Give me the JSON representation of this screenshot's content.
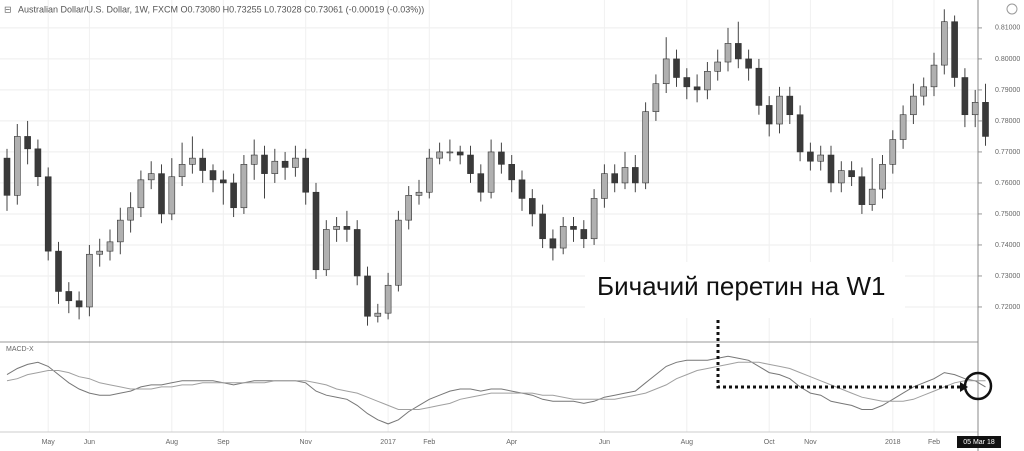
{
  "chart_data": [
    {
      "type": "candlestick",
      "title": "Australian Dollar/U.S. Dollar, 1W, FXCM O0.73080 H0.73255 L0.73028 C0.73061 (-0.00019 (-0.03%))",
      "annotation": "Бичачий перетин на W1",
      "crosshair_label": "05 Mar 18",
      "up_color": "#b0b0b0",
      "down_color": "#3a3a3a",
      "categories": [
        null,
        null,
        null,
        null,
        "May",
        null,
        null,
        null,
        "Jun",
        null,
        null,
        null,
        null,
        null,
        null,
        null,
        "Aug",
        null,
        null,
        null,
        null,
        "Sep",
        null,
        null,
        null,
        null,
        null,
        null,
        null,
        "Nov",
        null,
        null,
        null,
        null,
        null,
        null,
        null,
        "2017",
        null,
        null,
        null,
        "Feb",
        null,
        null,
        null,
        null,
        null,
        null,
        null,
        "Apr",
        null,
        null,
        null,
        null,
        null,
        null,
        null,
        null,
        "Jun",
        null,
        null,
        null,
        null,
        null,
        null,
        null,
        "Aug",
        null,
        null,
        null,
        null,
        null,
        null,
        null,
        "Oct",
        null,
        null,
        null,
        "Nov",
        null,
        null,
        null,
        null,
        null,
        null,
        null,
        "2018",
        null,
        null,
        null,
        "Feb",
        null,
        null,
        null,
        null,
        null
      ],
      "open": [
        0.768,
        0.756,
        0.775,
        0.771,
        0.762,
        0.738,
        0.725,
        0.722,
        0.72,
        0.737,
        0.738,
        0.741,
        0.748,
        0.752,
        0.761,
        0.763,
        0.75,
        0.762,
        0.766,
        0.768,
        0.764,
        0.761,
        0.76,
        0.752,
        0.766,
        0.769,
        0.763,
        0.767,
        0.765,
        0.768,
        0.757,
        0.732,
        0.745,
        0.746,
        0.745,
        0.73,
        0.717,
        0.718,
        0.727,
        0.748,
        0.756,
        0.757,
        0.768,
        0.77,
        0.77,
        0.769,
        0.763,
        0.757,
        0.77,
        0.766,
        0.761,
        0.755,
        0.75,
        0.742,
        0.739,
        0.746,
        0.745,
        0.742,
        0.755,
        0.763,
        0.76,
        0.765,
        0.76,
        0.783,
        0.792,
        0.8,
        0.794,
        0.791,
        0.79,
        0.796,
        0.799,
        0.805,
        0.8,
        0.797,
        0.785,
        0.779,
        0.788,
        0.782,
        0.77,
        0.767,
        0.769,
        0.76,
        0.764,
        0.762,
        0.753,
        0.758,
        0.766,
        0.774,
        0.782,
        0.788,
        0.791,
        0.798,
        0.812,
        0.794,
        0.782,
        0.786
      ],
      "high": [
        0.771,
        0.779,
        0.78,
        0.774,
        0.765,
        0.741,
        0.728,
        0.725,
        0.74,
        0.742,
        0.745,
        0.752,
        0.757,
        0.764,
        0.767,
        0.766,
        0.768,
        0.773,
        0.775,
        0.771,
        0.766,
        0.764,
        0.763,
        0.769,
        0.774,
        0.772,
        0.771,
        0.77,
        0.772,
        0.771,
        0.76,
        0.748,
        0.749,
        0.751,
        0.748,
        0.733,
        0.721,
        0.731,
        0.751,
        0.759,
        0.761,
        0.771,
        0.773,
        0.774,
        0.772,
        0.772,
        0.766,
        0.774,
        0.773,
        0.769,
        0.764,
        0.758,
        0.753,
        0.745,
        0.749,
        0.749,
        0.748,
        0.758,
        0.766,
        0.766,
        0.77,
        0.769,
        0.786,
        0.795,
        0.807,
        0.803,
        0.797,
        0.795,
        0.799,
        0.803,
        0.81,
        0.812,
        0.803,
        0.8,
        0.788,
        0.791,
        0.791,
        0.785,
        0.773,
        0.772,
        0.772,
        0.767,
        0.767,
        0.765,
        0.768,
        0.769,
        0.777,
        0.785,
        0.792,
        0.794,
        0.802,
        0.816,
        0.814,
        0.797,
        0.79,
        0.792
      ],
      "low": [
        0.751,
        0.753,
        0.766,
        0.759,
        0.735,
        0.721,
        0.718,
        0.716,
        0.717,
        0.733,
        0.735,
        0.737,
        0.744,
        0.749,
        0.758,
        0.747,
        0.748,
        0.759,
        0.763,
        0.76,
        0.757,
        0.753,
        0.749,
        0.75,
        0.761,
        0.755,
        0.76,
        0.761,
        0.762,
        0.753,
        0.729,
        0.73,
        0.741,
        0.741,
        0.727,
        0.714,
        0.715,
        0.716,
        0.725,
        0.745,
        0.753,
        0.755,
        0.766,
        0.767,
        0.766,
        0.76,
        0.754,
        0.755,
        0.763,
        0.757,
        0.751,
        0.746,
        0.739,
        0.735,
        0.737,
        0.741,
        0.739,
        0.74,
        0.752,
        0.757,
        0.758,
        0.757,
        0.758,
        0.78,
        0.789,
        0.791,
        0.787,
        0.786,
        0.787,
        0.793,
        0.796,
        0.797,
        0.793,
        0.782,
        0.775,
        0.776,
        0.779,
        0.767,
        0.764,
        0.764,
        0.757,
        0.757,
        0.759,
        0.75,
        0.751,
        0.755,
        0.763,
        0.771,
        0.779,
        0.785,
        0.788,
        0.795,
        0.791,
        0.778,
        0.778,
        0.772
      ],
      "close": [
        0.756,
        0.775,
        0.771,
        0.762,
        0.738,
        0.725,
        0.722,
        0.72,
        0.737,
        0.738,
        0.741,
        0.748,
        0.752,
        0.761,
        0.763,
        0.75,
        0.762,
        0.766,
        0.768,
        0.764,
        0.761,
        0.76,
        0.752,
        0.766,
        0.769,
        0.763,
        0.767,
        0.765,
        0.768,
        0.757,
        0.732,
        0.745,
        0.746,
        0.745,
        0.73,
        0.717,
        0.718,
        0.727,
        0.748,
        0.756,
        0.757,
        0.768,
        0.77,
        0.77,
        0.769,
        0.763,
        0.757,
        0.77,
        0.766,
        0.761,
        0.755,
        0.75,
        0.742,
        0.739,
        0.746,
        0.745,
        0.742,
        0.755,
        0.763,
        0.76,
        0.765,
        0.76,
        0.783,
        0.792,
        0.8,
        0.794,
        0.791,
        0.79,
        0.796,
        0.799,
        0.805,
        0.8,
        0.797,
        0.785,
        0.779,
        0.788,
        0.782,
        0.77,
        0.767,
        0.769,
        0.76,
        0.764,
        0.762,
        0.753,
        0.758,
        0.766,
        0.774,
        0.782,
        0.788,
        0.791,
        0.798,
        0.812,
        0.794,
        0.782,
        0.786,
        0.775
      ],
      "ylim": [
        0.7087,
        0.819
      ],
      "yticks": [
        {
          "value": 0.81,
          "label": "0.81000"
        },
        {
          "value": 0.8,
          "label": "0.80000"
        },
        {
          "value": 0.79,
          "label": "0.79000"
        },
        {
          "value": 0.78,
          "label": "0.78000"
        },
        {
          "value": 0.77,
          "label": "0.77000"
        },
        {
          "value": 0.76,
          "label": "0.76000"
        },
        {
          "value": 0.75,
          "label": "0.75000"
        },
        {
          "value": 0.74,
          "label": "0.74000"
        },
        {
          "value": 0.73,
          "label": "0.73000"
        },
        {
          "value": 0.72,
          "label": "0.72000"
        }
      ],
      "grid": true
    },
    {
      "type": "line",
      "title": "MACD-X",
      "ylim": [
        -0.022,
        0.016
      ],
      "series": [
        {
          "color": "#777777",
          "values": [
            0.004,
            0.007,
            0.009,
            0.01,
            0.008,
            0.004,
            0.0,
            -0.003,
            -0.005,
            -0.006,
            -0.006,
            -0.005,
            -0.004,
            -0.002,
            -0.001,
            -0.001,
            0.0,
            0.001,
            0.001,
            0.001,
            0.001,
            0.0,
            -0.001,
            0.0,
            0.001,
            0.001,
            0.001,
            0.001,
            0.001,
            0.0,
            -0.004,
            -0.006,
            -0.007,
            -0.008,
            -0.011,
            -0.015,
            -0.018,
            -0.02,
            -0.018,
            -0.014,
            -0.011,
            -0.008,
            -0.006,
            -0.004,
            -0.003,
            -0.003,
            -0.004,
            -0.003,
            -0.003,
            -0.004,
            -0.005,
            -0.006,
            -0.008,
            -0.009,
            -0.009,
            -0.009,
            -0.01,
            -0.009,
            -0.007,
            -0.006,
            -0.005,
            -0.004,
            0.0,
            0.004,
            0.008,
            0.01,
            0.011,
            0.011,
            0.011,
            0.012,
            0.013,
            0.012,
            0.011,
            0.008,
            0.005,
            0.004,
            0.002,
            -0.002,
            -0.005,
            -0.006,
            -0.009,
            -0.01,
            -0.011,
            -0.013,
            -0.013,
            -0.011,
            -0.008,
            -0.005,
            -0.002,
            0.0,
            0.002,
            0.005,
            0.004,
            0.002,
            0.001,
            -0.002
          ]
        },
        {
          "color": "#a0a0a0",
          "values": [
            0.001,
            0.002,
            0.004,
            0.005,
            0.006,
            0.006,
            0.005,
            0.003,
            0.002,
            0.0,
            -0.001,
            -0.002,
            -0.003,
            -0.003,
            -0.003,
            -0.002,
            -0.002,
            -0.001,
            -0.001,
            0.0,
            0.0,
            0.0,
            0.0,
            0.0,
            0.0,
            0.0,
            0.001,
            0.001,
            0.001,
            0.001,
            0.0,
            -0.001,
            -0.003,
            -0.004,
            -0.005,
            -0.007,
            -0.009,
            -0.011,
            -0.013,
            -0.013,
            -0.013,
            -0.012,
            -0.011,
            -0.01,
            -0.008,
            -0.007,
            -0.006,
            -0.005,
            -0.005,
            -0.005,
            -0.005,
            -0.005,
            -0.006,
            -0.006,
            -0.007,
            -0.008,
            -0.008,
            -0.008,
            -0.008,
            -0.008,
            -0.007,
            -0.006,
            -0.005,
            -0.003,
            -0.001,
            0.002,
            0.004,
            0.006,
            0.007,
            0.008,
            0.009,
            0.01,
            0.01,
            0.01,
            0.009,
            0.008,
            0.007,
            0.005,
            0.003,
            0.001,
            -0.001,
            -0.003,
            -0.005,
            -0.007,
            -0.008,
            -0.009,
            -0.009,
            -0.009,
            -0.008,
            -0.006,
            -0.004,
            -0.002,
            0.0,
            0.001,
            0.001,
            0.001
          ]
        }
      ]
    }
  ]
}
